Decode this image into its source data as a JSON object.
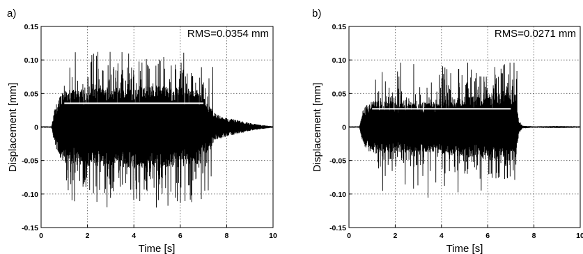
{
  "chart_data": [
    {
      "type": "line",
      "panel_label": "a)",
      "xlabel": "Time [s]",
      "ylabel": "Displacement [mm]",
      "xlim": [
        0,
        10
      ],
      "ylim": [
        -0.15,
        0.15
      ],
      "xticks": [
        0,
        2,
        4,
        6,
        8,
        10
      ],
      "yticks": [
        -0.15,
        -0.1,
        -0.05,
        0,
        0.05,
        0.1,
        0.15
      ],
      "ytick_labels": [
        "-0.15",
        "-0.10",
        "-0.05",
        "0",
        "0.05",
        "0.10",
        "0.15"
      ],
      "grid": true,
      "annotation": "RMS=0.0354 mm",
      "rms_value": 0.0354,
      "rms_line": {
        "x_start": 1.0,
        "x_end": 7.0,
        "y": 0.0354,
        "color": "#ffffff"
      },
      "series_color": "#000000",
      "envelope": {
        "t": [
          0,
          0.45,
          0.5,
          0.6,
          0.8,
          1.0,
          2.0,
          3.0,
          4.0,
          5.0,
          6.0,
          6.8,
          7.2,
          7.5,
          8.0,
          8.5,
          9.0,
          9.5,
          10.0
        ],
        "amp": [
          0.001,
          0.001,
          0.01,
          0.03,
          0.045,
          0.055,
          0.058,
          0.06,
          0.062,
          0.062,
          0.06,
          0.055,
          0.035,
          0.02,
          0.014,
          0.01,
          0.006,
          0.003,
          0.001
        ]
      },
      "peaks": {
        "t_start": 1.0,
        "t_end": 7.4,
        "max_positive": 0.112,
        "max_negative": -0.122
      }
    },
    {
      "type": "line",
      "panel_label": "b)",
      "xlabel": "Time [s]",
      "ylabel": "Displacement [mm]",
      "xlim": [
        0,
        10
      ],
      "ylim": [
        -0.15,
        0.15
      ],
      "xticks": [
        0,
        2,
        4,
        6,
        8,
        10
      ],
      "yticks": [
        -0.15,
        -0.1,
        -0.05,
        0,
        0.05,
        0.1,
        0.15
      ],
      "ytick_labels": [
        "-0.15",
        "-0.10",
        "-0.05",
        "0",
        "0.05",
        "0.10",
        "0.15"
      ],
      "grid": true,
      "annotation": "RMS=0.0271 mm",
      "rms_value": 0.0271,
      "rms_line": {
        "x_start": 1.0,
        "x_end": 7.0,
        "y": 0.0271,
        "color": "#ffffff"
      },
      "series_color": "#000000",
      "envelope": {
        "t": [
          0,
          0.45,
          0.5,
          0.6,
          0.8,
          1.0,
          2.0,
          3.0,
          4.0,
          5.0,
          6.0,
          6.8,
          7.2,
          7.35,
          7.5,
          8.0,
          9.0,
          10.0
        ],
        "amp": [
          0.001,
          0.001,
          0.008,
          0.025,
          0.035,
          0.04,
          0.038,
          0.037,
          0.04,
          0.045,
          0.05,
          0.052,
          0.05,
          0.01,
          0.002,
          0.001,
          0.0015,
          0.001
        ]
      },
      "peaks": {
        "t_start": 1.0,
        "t_end": 7.3,
        "max_positive": 0.096,
        "max_negative": -0.106
      }
    }
  ]
}
